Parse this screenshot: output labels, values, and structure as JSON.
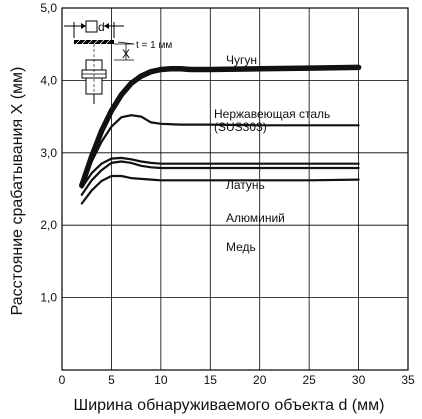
{
  "chart_data": {
    "type": "line",
    "title": "",
    "xlabel": "Ширина обнаруживаемого объекта d (мм)",
    "ylabel": "Расстояние срабатывания X (мм)",
    "xlim": [
      0,
      35
    ],
    "ylim": [
      0,
      5.0
    ],
    "x_ticks": [
      "0",
      "5",
      "10",
      "15",
      "20",
      "25",
      "30",
      "35"
    ],
    "y_ticks": [
      "1,0",
      "2,0",
      "3,0",
      "4,0",
      "5,0"
    ],
    "grid": true,
    "series": [
      {
        "name": "Чугун",
        "x": [
          2,
          3,
          4,
          5,
          6,
          7,
          8,
          9,
          10,
          11,
          12,
          13,
          15,
          20,
          25,
          30
        ],
        "y": [
          2.55,
          2.95,
          3.3,
          3.58,
          3.8,
          3.96,
          4.06,
          4.12,
          4.15,
          4.16,
          4.16,
          4.15,
          4.15,
          4.16,
          4.17,
          4.18
        ]
      },
      {
        "name": "Нержавеющая сталь (SUS303)",
        "x": [
          2,
          3,
          4,
          5,
          6,
          7,
          8,
          9,
          10,
          12,
          15,
          20,
          25,
          30
        ],
        "y": [
          2.55,
          2.88,
          3.15,
          3.36,
          3.49,
          3.52,
          3.5,
          3.42,
          3.4,
          3.39,
          3.39,
          3.38,
          3.38,
          3.38
        ]
      },
      {
        "name": "Латунь",
        "x": [
          2,
          3,
          4,
          5,
          6,
          7,
          8,
          9,
          10,
          12,
          15,
          20,
          25,
          30
        ],
        "y": [
          2.52,
          2.72,
          2.85,
          2.92,
          2.93,
          2.91,
          2.88,
          2.86,
          2.85,
          2.85,
          2.85,
          2.85,
          2.85,
          2.85
        ]
      },
      {
        "name": "Алюминий",
        "x": [
          2,
          3,
          4,
          5,
          6,
          7,
          8,
          9,
          10,
          12,
          15,
          20,
          25,
          30
        ],
        "y": [
          2.42,
          2.62,
          2.76,
          2.86,
          2.88,
          2.86,
          2.82,
          2.8,
          2.79,
          2.79,
          2.79,
          2.79,
          2.79,
          2.79
        ]
      },
      {
        "name": "Медь",
        "x": [
          2,
          3,
          4,
          5,
          6,
          7,
          8,
          9,
          10,
          12,
          15,
          20,
          25,
          30
        ],
        "y": [
          2.3,
          2.48,
          2.61,
          2.68,
          2.68,
          2.65,
          2.64,
          2.63,
          2.62,
          2.62,
          2.62,
          2.62,
          2.62,
          2.63
        ]
      }
    ]
  },
  "inset": {
    "d_label": "d",
    "x_label": "X",
    "thickness_label": "t = 1 мм"
  }
}
